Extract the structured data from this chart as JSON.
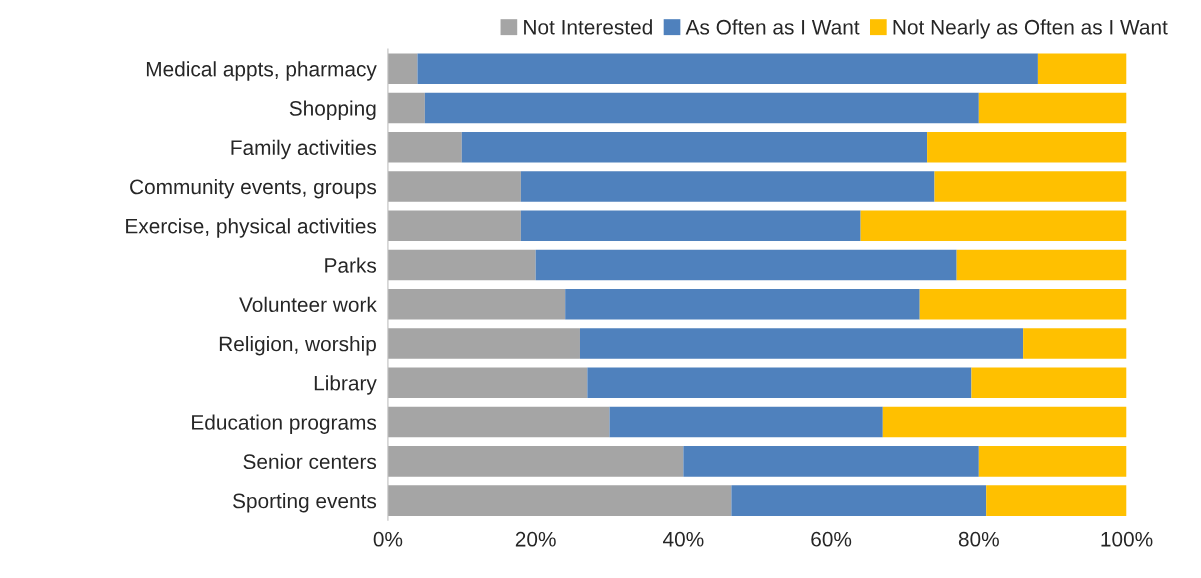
{
  "chart_data": {
    "type": "bar",
    "orientation": "horizontal",
    "stacked": true,
    "categories": [
      "Medical appts, pharmacy",
      "Shopping",
      "Family activities",
      "Community events, groups",
      "Exercise, physical activities",
      "Parks",
      "Volunteer work",
      "Religion, worship",
      "Library",
      "Education programs",
      "Senior centers",
      "Sporting events"
    ],
    "series": [
      {
        "name": "Not Interested",
        "color": "#a5a5a5",
        "values": [
          4,
          5,
          10,
          18,
          18,
          20,
          24,
          26,
          27,
          30,
          40,
          46.5
        ]
      },
      {
        "name": "As Often as I Want",
        "color": "#4f81bd",
        "values": [
          84,
          75,
          63,
          56,
          46,
          57,
          48,
          60,
          52,
          37,
          40,
          34.5
        ]
      },
      {
        "name": "Not Nearly as Often as I Want",
        "color": "#ffc000",
        "values": [
          12,
          20,
          27,
          26,
          36,
          23,
          28,
          14,
          21,
          33,
          20,
          19
        ]
      }
    ],
    "xlim": [
      0,
      100
    ],
    "xticks": [
      {
        "value": 0,
        "label": "0%"
      },
      {
        "value": 20,
        "label": "20%"
      },
      {
        "value": 40,
        "label": "40%"
      },
      {
        "value": 60,
        "label": "60%"
      },
      {
        "value": 80,
        "label": "80%"
      },
      {
        "value": 100,
        "label": "100%"
      }
    ],
    "grid": false,
    "legend": "top right"
  }
}
